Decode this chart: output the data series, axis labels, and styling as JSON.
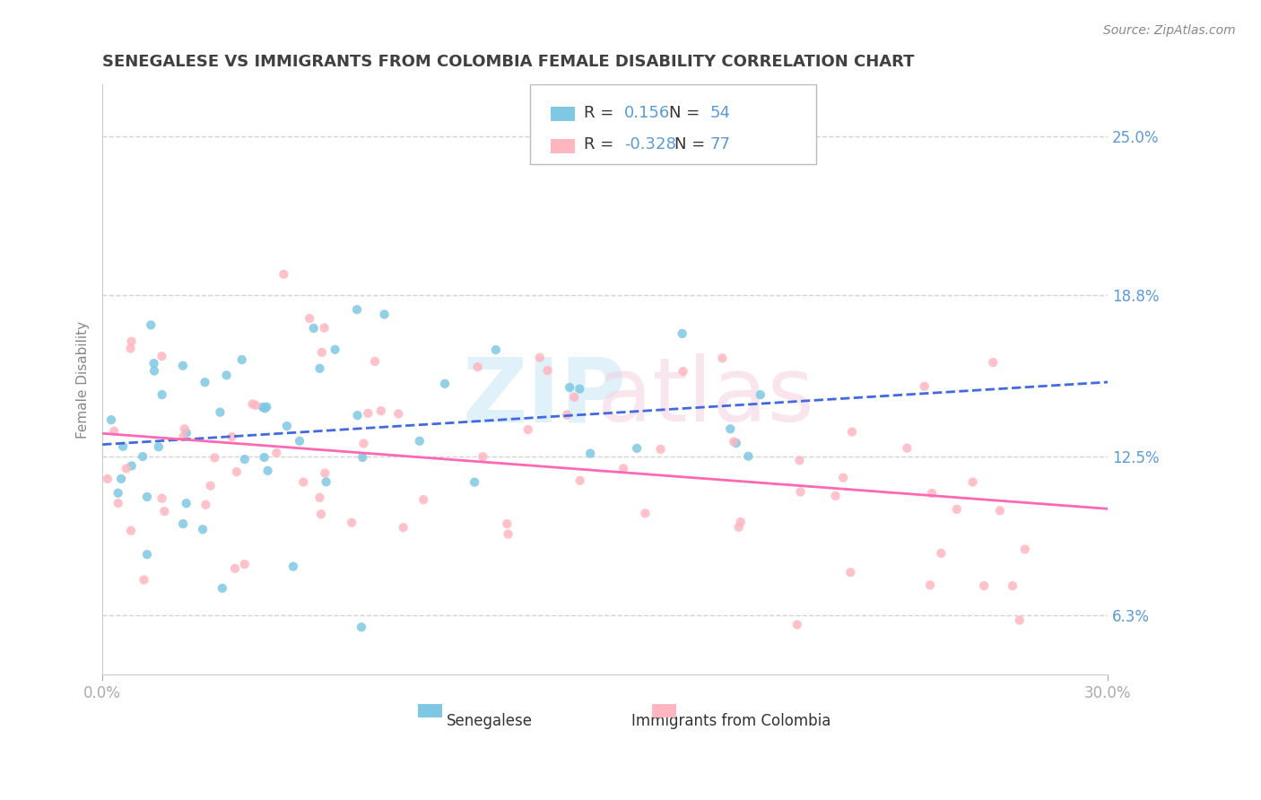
{
  "title": "SENEGALESE VS IMMIGRANTS FROM COLOMBIA FEMALE DISABILITY CORRELATION CHART",
  "source": "Source: ZipAtlas.com",
  "xlabel": "",
  "ylabel": "Female Disability",
  "xlim": [
    0.0,
    0.3
  ],
  "ylim": [
    0.04,
    0.27
  ],
  "xticks": [
    0.0,
    0.3
  ],
  "xticklabels": [
    "0.0%",
    "30.0%"
  ],
  "yticks_right": [
    0.063,
    0.125,
    0.188,
    0.25
  ],
  "ytick_labels_right": [
    "6.3%",
    "12.5%",
    "18.8%",
    "25.0%"
  ],
  "r_senegalese": 0.156,
  "n_senegalese": 54,
  "r_colombia": -0.328,
  "n_colombia": 77,
  "color_senegalese": "#7ec8e3",
  "color_colombia": "#ffb6c1",
  "color_senegalese_line": "#4169e1",
  "color_colombia_line": "#ff69b4",
  "legend_label_1": "Senegalese",
  "legend_label_2": "Immigrants from Colombia",
  "background_color": "#ffffff",
  "grid_color": "#d3d3d3",
  "title_color": "#404040",
  "tick_label_color": "#5b9bd5"
}
